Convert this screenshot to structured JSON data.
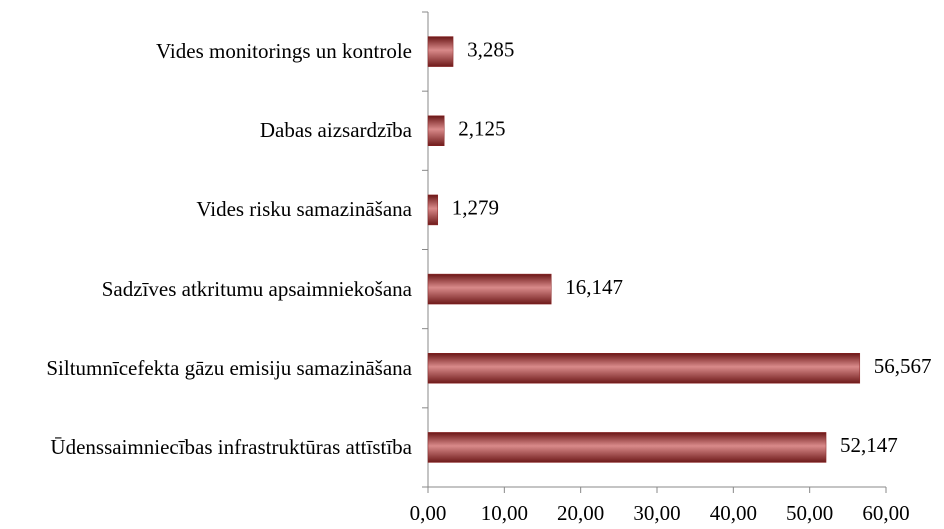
{
  "chart_data": {
    "type": "bar",
    "orientation": "horizontal",
    "categories": [
      "Vides monitorings un kontrole",
      "Dabas aizsardzība",
      "Vides risku samazināšana",
      "Sadzīves atkritumu apsaimniekošana",
      "Siltumnīcefekta gāzu emisiju samazināšana",
      "Ūdenssaimniecības infrastruktūras attīstība"
    ],
    "values": [
      3.285,
      2.125,
      1.279,
      16.147,
      56.567,
      52.147
    ],
    "value_labels": [
      "3,285",
      "2,125",
      "1,279",
      "16,147",
      "56,567",
      "52,147"
    ],
    "color": "#8b2323",
    "xlim": [
      0,
      60
    ],
    "xticks": [
      {
        "value": 0,
        "label": "0,00"
      },
      {
        "value": 10,
        "label": "10,00"
      },
      {
        "value": 20,
        "label": "20,00"
      },
      {
        "value": 30,
        "label": "30,00"
      },
      {
        "value": 40,
        "label": "40,00"
      },
      {
        "value": 50,
        "label": "50,00"
      },
      {
        "value": 60,
        "label": "60,00"
      }
    ],
    "grid": false
  }
}
